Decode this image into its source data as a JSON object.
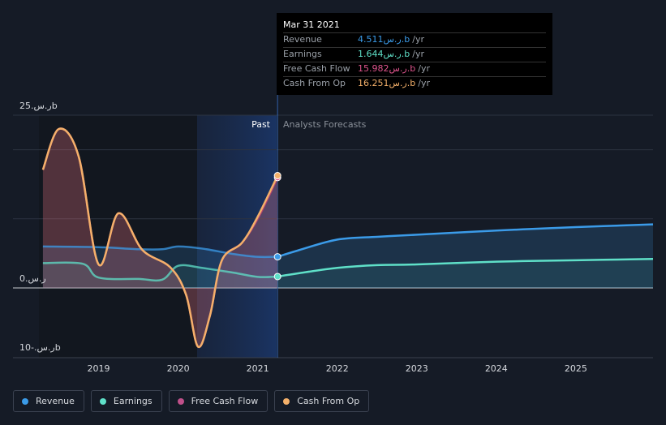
{
  "tooltip": {
    "date": "Mar 31 2021",
    "rows": [
      {
        "label": "Revenue",
        "value": "4.511ر.س.b",
        "unit": "/yr",
        "color": "#3b9be8"
      },
      {
        "label": "Earnings",
        "value": "1.644ر.س.b",
        "unit": "/yr",
        "color": "#5fe0c8"
      },
      {
        "label": "Free Cash Flow",
        "value": "15.982ر.س.b",
        "unit": "/yr",
        "color": "#e0558e"
      },
      {
        "label": "Cash From Op",
        "value": "16.251ر.س.b",
        "unit": "/yr",
        "color": "#f4b06a"
      }
    ]
  },
  "labels": {
    "past": "Past",
    "forecast": "Analysts Forecasts"
  },
  "legend": [
    {
      "label": "Revenue",
      "color": "#3b9be8"
    },
    {
      "label": "Earnings",
      "color": "#5fe0c8"
    },
    {
      "label": "Free Cash Flow",
      "color": "#c0508a"
    },
    {
      "label": "Cash From Op",
      "color": "#f4b06a"
    }
  ],
  "chart_data": {
    "type": "line",
    "y_unit": "ر.س.b",
    "ylim": [
      -10,
      25
    ],
    "y_ticks": [
      {
        "value": 25,
        "label": "ر.س.25b"
      },
      {
        "value": 0,
        "label": "ر.س.0"
      },
      {
        "value": -10,
        "label": "ر.س.-10b"
      }
    ],
    "xlim": [
      2018.25,
      2025.97
    ],
    "x_ticks": [
      "2019",
      "2020",
      "2021",
      "2022",
      "2023",
      "2024",
      "2025"
    ],
    "past_start": 2020.25,
    "forecast_start": 2021.25,
    "series": [
      {
        "name": "Revenue",
        "color": "#3b9be8",
        "points": [
          [
            2018.3,
            6.0
          ],
          [
            2019.0,
            5.9
          ],
          [
            2019.5,
            5.6
          ],
          [
            2019.8,
            5.6
          ],
          [
            2020.0,
            6.0
          ],
          [
            2020.3,
            5.7
          ],
          [
            2020.7,
            4.9
          ],
          [
            2021.0,
            4.5
          ],
          [
            2021.25,
            4.511
          ]
        ],
        "forecast": [
          [
            2021.25,
            4.511
          ],
          [
            2021.5,
            5.4
          ],
          [
            2022.0,
            7.0
          ],
          [
            2022.5,
            7.4
          ],
          [
            2023.0,
            7.7
          ],
          [
            2024.0,
            8.3
          ],
          [
            2025.0,
            8.8
          ],
          [
            2025.97,
            9.2
          ]
        ]
      },
      {
        "name": "Earnings",
        "color": "#5fe0c8",
        "points": [
          [
            2018.3,
            3.6
          ],
          [
            2018.8,
            3.5
          ],
          [
            2019.0,
            1.5
          ],
          [
            2019.5,
            1.3
          ],
          [
            2019.8,
            1.2
          ],
          [
            2020.0,
            3.2
          ],
          [
            2020.3,
            2.9
          ],
          [
            2020.7,
            2.2
          ],
          [
            2021.0,
            1.6
          ],
          [
            2021.25,
            1.644
          ]
        ],
        "forecast": [
          [
            2021.25,
            1.644
          ],
          [
            2021.5,
            2.1
          ],
          [
            2022.0,
            2.9
          ],
          [
            2022.5,
            3.3
          ],
          [
            2023.0,
            3.4
          ],
          [
            2024.0,
            3.8
          ],
          [
            2025.0,
            4.0
          ],
          [
            2025.97,
            4.2
          ]
        ]
      },
      {
        "name": "Free Cash Flow",
        "color": "#e0558e",
        "points": [
          [
            2018.3,
            17.1
          ],
          [
            2018.5,
            23.0
          ],
          [
            2018.75,
            19.0
          ],
          [
            2019.0,
            3.4
          ],
          [
            2019.25,
            10.8
          ],
          [
            2019.55,
            5.5
          ],
          [
            2019.9,
            3.0
          ],
          [
            2020.1,
            -1.0
          ],
          [
            2020.25,
            -8.5
          ],
          [
            2020.4,
            -4.0
          ],
          [
            2020.55,
            4.0
          ],
          [
            2020.8,
            6.5
          ],
          [
            2021.0,
            10.0
          ],
          [
            2021.25,
            15.982
          ]
        ],
        "forecast": []
      },
      {
        "name": "Cash From Op",
        "color": "#f4b06a",
        "points": [
          [
            2018.3,
            17.1
          ],
          [
            2018.5,
            23.0
          ],
          [
            2018.75,
            19.0
          ],
          [
            2019.0,
            3.4
          ],
          [
            2019.25,
            10.8
          ],
          [
            2019.55,
            5.5
          ],
          [
            2019.9,
            3.0
          ],
          [
            2020.1,
            -1.0
          ],
          [
            2020.25,
            -8.5
          ],
          [
            2020.4,
            -4.0
          ],
          [
            2020.55,
            4.0
          ],
          [
            2020.8,
            6.5
          ],
          [
            2021.0,
            10.3
          ],
          [
            2021.25,
            16.251
          ]
        ],
        "forecast": []
      }
    ]
  }
}
